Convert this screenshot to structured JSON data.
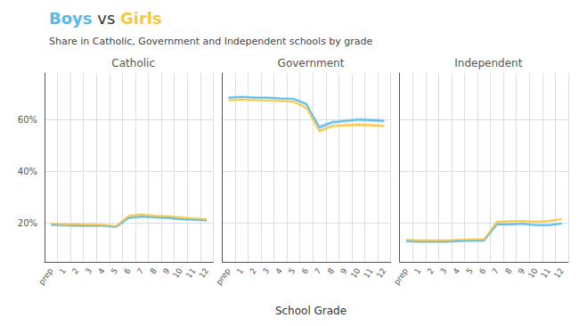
{
  "title": "Boys vs Girls",
  "subtitle": "Share in Catholic, Government and Independent schools by grade",
  "xlabel": "School Grade",
  "chart_data": [
    {
      "type": "line",
      "title": "Catholic",
      "categories": [
        "prep",
        "1",
        "2",
        "3",
        "4",
        "5",
        "6",
        "7",
        "8",
        "9",
        "10",
        "11",
        "12"
      ],
      "series": [
        {
          "name": "Boys",
          "color": "#5BB8E8",
          "values": [
            0.193,
            0.191,
            0.19,
            0.19,
            0.19,
            0.185,
            0.22,
            0.225,
            0.222,
            0.22,
            0.215,
            0.213,
            0.21
          ],
          "lo": [
            0.188,
            0.186,
            0.185,
            0.185,
            0.185,
            0.18,
            0.215,
            0.22,
            0.217,
            0.215,
            0.21,
            0.208,
            0.205
          ],
          "hi": [
            0.198,
            0.196,
            0.195,
            0.195,
            0.195,
            0.19,
            0.225,
            0.23,
            0.227,
            0.225,
            0.22,
            0.218,
            0.215
          ]
        },
        {
          "name": "Girls",
          "color": "#F5C842",
          "values": [
            0.197,
            0.195,
            0.195,
            0.194,
            0.193,
            0.188,
            0.228,
            0.233,
            0.228,
            0.226,
            0.222,
            0.218,
            0.215
          ],
          "lo": [
            0.192,
            0.19,
            0.19,
            0.189,
            0.188,
            0.183,
            0.223,
            0.228,
            0.223,
            0.221,
            0.217,
            0.213,
            0.21
          ],
          "hi": [
            0.202,
            0.2,
            0.2,
            0.199,
            0.198,
            0.193,
            0.233,
            0.238,
            0.233,
            0.231,
            0.227,
            0.223,
            0.22
          ]
        }
      ],
      "ylim": [
        0.05,
        0.78
      ],
      "yticks": [
        {
          "value": 0.2,
          "label": "20%"
        },
        {
          "value": 0.4,
          "label": "40%"
        },
        {
          "value": 0.6,
          "label": "60%"
        }
      ],
      "grid": true
    },
    {
      "type": "line",
      "title": "Government",
      "categories": [
        "prep",
        "1",
        "2",
        "3",
        "4",
        "5",
        "6",
        "7",
        "8",
        "9",
        "10",
        "11",
        "12"
      ],
      "series": [
        {
          "name": "Boys",
          "color": "#5BB8E8",
          "values": [
            0.685,
            0.688,
            0.685,
            0.685,
            0.682,
            0.68,
            0.66,
            0.57,
            0.59,
            0.595,
            0.6,
            0.598,
            0.595
          ],
          "lo": [
            0.68,
            0.683,
            0.68,
            0.68,
            0.677,
            0.675,
            0.653,
            0.56,
            0.583,
            0.588,
            0.593,
            0.591,
            0.588
          ],
          "hi": [
            0.69,
            0.693,
            0.69,
            0.69,
            0.687,
            0.685,
            0.667,
            0.58,
            0.597,
            0.602,
            0.607,
            0.605,
            0.602
          ]
        },
        {
          "name": "Girls",
          "color": "#F5C842",
          "values": [
            0.675,
            0.678,
            0.675,
            0.674,
            0.672,
            0.67,
            0.645,
            0.555,
            0.575,
            0.578,
            0.58,
            0.578,
            0.575
          ],
          "lo": [
            0.67,
            0.673,
            0.67,
            0.669,
            0.667,
            0.665,
            0.638,
            0.548,
            0.568,
            0.571,
            0.573,
            0.571,
            0.568
          ],
          "hi": [
            0.68,
            0.683,
            0.68,
            0.679,
            0.677,
            0.675,
            0.652,
            0.562,
            0.582,
            0.585,
            0.587,
            0.585,
            0.582
          ]
        }
      ],
      "ylim": [
        0.05,
        0.78
      ],
      "yticks": [
        0.2,
        0.4,
        0.6
      ],
      "grid": true,
      "tick_labels": "x"
    },
    {
      "type": "line",
      "title": "Independent",
      "categories": [
        "prep",
        "1",
        "2",
        "3",
        "4",
        "5",
        "6",
        "7",
        "8",
        "9",
        "10",
        "11",
        "12"
      ],
      "series": [
        {
          "name": "Boys",
          "color": "#5BB8E8",
          "values": [
            0.13,
            0.128,
            0.128,
            0.128,
            0.13,
            0.132,
            0.132,
            0.195,
            0.195,
            0.197,
            0.192,
            0.192,
            0.198
          ],
          "lo": [
            0.125,
            0.123,
            0.123,
            0.123,
            0.125,
            0.127,
            0.127,
            0.19,
            0.19,
            0.192,
            0.187,
            0.187,
            0.193
          ],
          "hi": [
            0.135,
            0.133,
            0.133,
            0.133,
            0.135,
            0.137,
            0.137,
            0.2,
            0.2,
            0.202,
            0.197,
            0.197,
            0.203
          ]
        },
        {
          "name": "Girls",
          "color": "#F5C842",
          "values": [
            0.135,
            0.133,
            0.133,
            0.133,
            0.135,
            0.137,
            0.137,
            0.205,
            0.207,
            0.208,
            0.205,
            0.208,
            0.215
          ],
          "lo": [
            0.13,
            0.128,
            0.128,
            0.128,
            0.13,
            0.132,
            0.132,
            0.2,
            0.202,
            0.203,
            0.2,
            0.203,
            0.21
          ],
          "hi": [
            0.14,
            0.138,
            0.138,
            0.138,
            0.14,
            0.142,
            0.142,
            0.21,
            0.212,
            0.213,
            0.21,
            0.213,
            0.22
          ]
        }
      ],
      "ylim": [
        0.05,
        0.78
      ],
      "yticks": [
        0.2,
        0.4,
        0.6
      ],
      "grid": true,
      "tick_labels": "x"
    }
  ]
}
